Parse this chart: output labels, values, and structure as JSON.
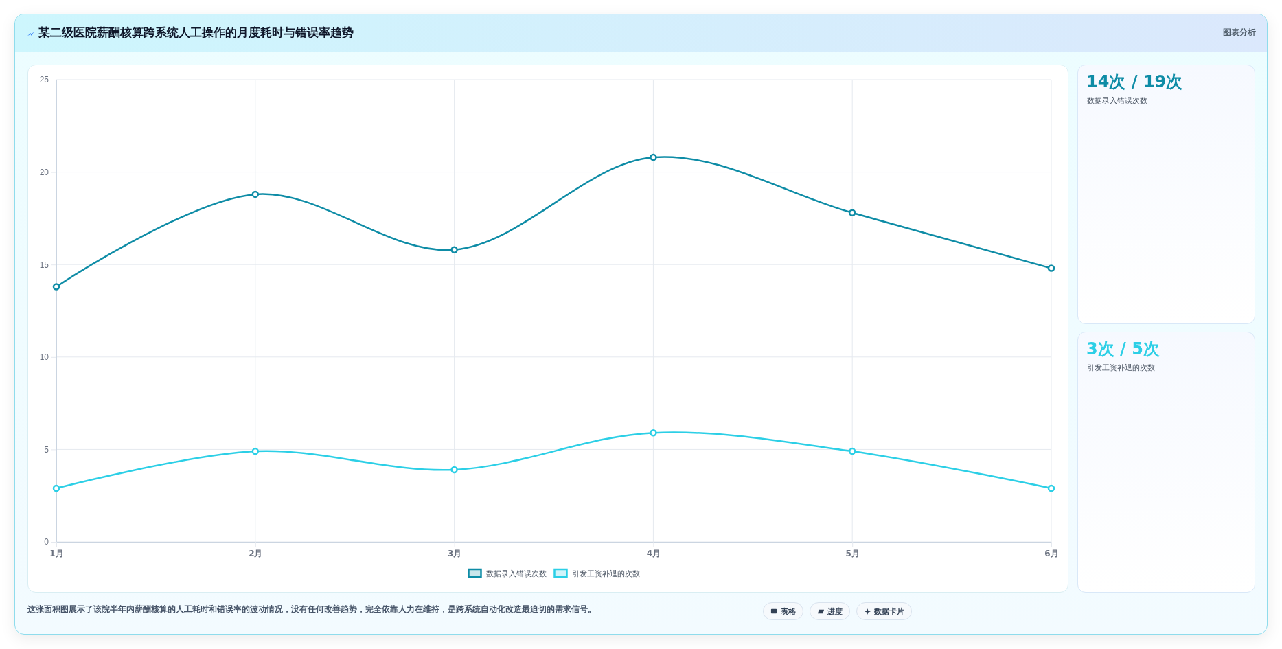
{
  "chart_data": {
    "type": "line",
    "title": "某二级医院薪酬核算跨系统人工操作的月度耗时与错误率趋势",
    "categories": [
      "1月",
      "2月",
      "3月",
      "4月",
      "5月",
      "6月"
    ],
    "series": [
      {
        "name": "数据录入错误次数",
        "color": "#0e8ca6",
        "values": [
          13.8,
          18.8,
          15.8,
          20.8,
          17.8,
          14.8
        ]
      },
      {
        "name": "引发工资补退的次数",
        "color": "#2ccfe6",
        "values": [
          2.9,
          4.9,
          3.9,
          5.9,
          4.9,
          2.9
        ]
      }
    ],
    "ylim": [
      0,
      25
    ],
    "yticks": [
      0,
      5,
      10,
      15,
      20,
      25
    ],
    "grid": true,
    "legend": "bottom",
    "marker": "circle",
    "annotations": [
      "图表分析",
      "14次 / 19次",
      "数据录入错误次数",
      "3次 / 5次",
      "引发工资补退的次数",
      "这张面积图展示了该院半年内薪酬核算的人工耗时和错误率的波动情况，没有任何改善趋势，完全依靠人力在维持，是跨系统自动化改造最迫切的需求信号。",
      "表格",
      "进度",
      "数据卡片"
    ]
  }
}
